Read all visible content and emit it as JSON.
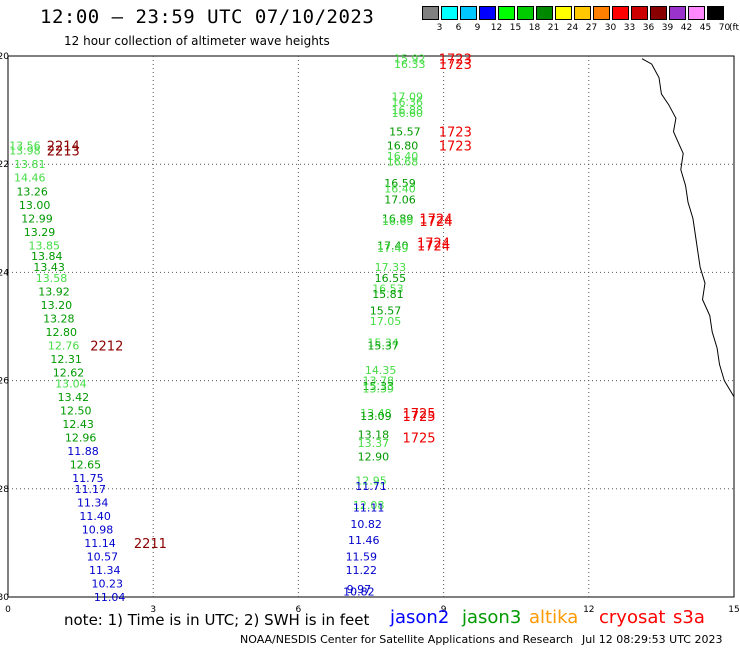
{
  "header": {
    "title": "12:00 – 23:59 UTC 07/10/2023",
    "subtitle": "12 hour collection of altimeter wave heights"
  },
  "color_scale": {
    "colors": [
      "#808080",
      "#00ffff",
      "#00c8ff",
      "#0000ff",
      "#00ff00",
      "#00cc00",
      "#008800",
      "#ffff00",
      "#ffc800",
      "#ff8000",
      "#ff0000",
      "#cc0000",
      "#880000",
      "#9933cc",
      "#ff88ff",
      "#000000"
    ],
    "labels": [
      "3",
      "6",
      "9",
      "12",
      "15",
      "18",
      "21",
      "24",
      "27",
      "30",
      "33",
      "36",
      "39",
      "42",
      "45",
      "70"
    ],
    "unit": "(ft)"
  },
  "footer": {
    "note": "note:  1) Time is in UTC; 2) SWH is in feet",
    "satellites": [
      {
        "name": "jason2",
        "color": "#0000ff"
      },
      {
        "name": "jason3",
        "color": "#009900"
      },
      {
        "name": "altika",
        "color": "#ff9900"
      },
      {
        "name": "cryosat",
        "color": "#ff0000"
      },
      {
        "name": "s3a",
        "color": "#ff0000"
      }
    ],
    "credit": "NOAA/NESDIS Center for Satellite Applications and Research",
    "timestamp": "Jul 12 08:29:53 UTC 2023"
  },
  "chart_data": {
    "type": "scatter",
    "xlim": [
      0,
      15
    ],
    "ylim": [
      -30,
      -20
    ],
    "xticks": [
      "0",
      "3",
      "6",
      "9",
      "12",
      "15"
    ],
    "yticks": [
      "-20",
      "-22",
      "-24",
      "-26",
      "-28",
      "-30"
    ],
    "grid": true,
    "track_color_key": {
      "light_green": "#44dd44",
      "dark_green": "#009900",
      "blue": "#0000cc"
    },
    "coastline": [
      [
        13.1,
        -20.05
      ],
      [
        13.3,
        -20.15
      ],
      [
        13.45,
        -20.4
      ],
      [
        13.5,
        -20.7
      ],
      [
        13.65,
        -20.9
      ],
      [
        13.8,
        -21.15
      ],
      [
        13.75,
        -21.4
      ],
      [
        13.85,
        -21.6
      ],
      [
        13.95,
        -21.8
      ],
      [
        13.9,
        -22.1
      ],
      [
        14.0,
        -22.4
      ],
      [
        14.05,
        -22.7
      ],
      [
        14.15,
        -23.0
      ],
      [
        14.2,
        -23.3
      ],
      [
        14.25,
        -23.6
      ],
      [
        14.3,
        -23.9
      ],
      [
        14.4,
        -24.2
      ],
      [
        14.35,
        -24.5
      ],
      [
        14.5,
        -24.8
      ],
      [
        14.55,
        -25.1
      ],
      [
        14.65,
        -25.4
      ],
      [
        14.7,
        -25.7
      ],
      [
        14.8,
        -26.0
      ],
      [
        14.9,
        -26.15
      ],
      [
        15.0,
        -26.3
      ]
    ],
    "points": [
      {
        "x": 8.3,
        "y": -20.05,
        "label": "15.92",
        "color": "#44dd44"
      },
      {
        "x": 8.3,
        "y": -20.15,
        "label": "16.33",
        "color": "#44dd44"
      },
      {
        "x": 8.25,
        "y": -20.75,
        "label": "17.09",
        "color": "#44dd44"
      },
      {
        "x": 8.25,
        "y": -20.85,
        "label": "16.36",
        "color": "#44dd44"
      },
      {
        "x": 8.25,
        "y": -21.0,
        "label": "16.88",
        "color": "#44dd44"
      },
      {
        "x": 8.25,
        "y": -21.05,
        "label": "16.60",
        "color": "#44dd44"
      },
      {
        "x": 8.2,
        "y": -21.4,
        "label": "15.57",
        "color": "#009900"
      },
      {
        "x": 8.15,
        "y": -21.65,
        "label": "16.80",
        "color": "#009900"
      },
      {
        "x": 8.15,
        "y": -21.85,
        "label": "16.40",
        "color": "#44dd44"
      },
      {
        "x": 8.15,
        "y": -21.95,
        "label": "16.68",
        "color": "#44dd44"
      },
      {
        "x": 8.1,
        "y": -22.35,
        "label": "16.59",
        "color": "#009900"
      },
      {
        "x": 8.1,
        "y": -22.45,
        "label": "16.40",
        "color": "#44dd44"
      },
      {
        "x": 8.1,
        "y": -22.65,
        "label": "17.06",
        "color": "#009900"
      },
      {
        "x": 8.05,
        "y": -23.0,
        "label": "16.89",
        "color": "#009900"
      },
      {
        "x": 8.05,
        "y": -23.05,
        "label": "16.69",
        "color": "#44dd44"
      },
      {
        "x": 7.95,
        "y": -23.5,
        "label": "17.40",
        "color": "#009900"
      },
      {
        "x": 7.95,
        "y": -23.55,
        "label": "17.49",
        "color": "#44dd44"
      },
      {
        "x": 7.9,
        "y": -23.9,
        "label": "17.33",
        "color": "#44dd44"
      },
      {
        "x": 7.9,
        "y": -24.1,
        "label": "16.55",
        "color": "#009900"
      },
      {
        "x": 7.85,
        "y": -24.3,
        "label": "16.53",
        "color": "#44dd44"
      },
      {
        "x": 7.85,
        "y": -24.4,
        "label": "15.81",
        "color": "#009900"
      },
      {
        "x": 7.8,
        "y": -24.7,
        "label": "15.57",
        "color": "#009900"
      },
      {
        "x": 7.8,
        "y": -24.9,
        "label": "17.05",
        "color": "#44dd44"
      },
      {
        "x": 7.75,
        "y": -25.3,
        "label": "15.34",
        "color": "#44dd44"
      },
      {
        "x": 7.75,
        "y": -25.35,
        "label": "15.37",
        "color": "#009900"
      },
      {
        "x": 7.7,
        "y": -25.8,
        "label": "14.35",
        "color": "#44dd44"
      },
      {
        "x": 7.65,
        "y": -26.0,
        "label": "13.78",
        "color": "#44dd44"
      },
      {
        "x": 7.65,
        "y": -26.1,
        "label": "15.33",
        "color": "#009900"
      },
      {
        "x": 7.65,
        "y": -26.15,
        "label": "13.39",
        "color": "#44dd44"
      },
      {
        "x": 7.6,
        "y": -26.6,
        "label": "13.48",
        "color": "#44dd44"
      },
      {
        "x": 7.6,
        "y": -26.65,
        "label": "13.09",
        "color": "#009900"
      },
      {
        "x": 7.55,
        "y": -27.0,
        "label": "13.18",
        "color": "#009900"
      },
      {
        "x": 7.55,
        "y": -27.15,
        "label": "13.37",
        "color": "#44dd44"
      },
      {
        "x": 7.55,
        "y": -27.4,
        "label": "12.90",
        "color": "#009900"
      },
      {
        "x": 7.5,
        "y": -27.85,
        "label": "12.95",
        "color": "#44dd44"
      },
      {
        "x": 7.5,
        "y": -27.95,
        "label": "11.71",
        "color": "#0000cc"
      },
      {
        "x": 7.45,
        "y": -28.3,
        "label": "12.08",
        "color": "#44dd44"
      },
      {
        "x": 7.45,
        "y": -28.35,
        "label": "11.11",
        "color": "#0000cc"
      },
      {
        "x": 7.4,
        "y": -28.65,
        "label": "10.82",
        "color": "#0000cc"
      },
      {
        "x": 7.35,
        "y": -28.95,
        "label": "11.46",
        "color": "#0000cc"
      },
      {
        "x": 7.3,
        "y": -29.25,
        "label": "11.59",
        "color": "#0000cc"
      },
      {
        "x": 7.3,
        "y": -29.5,
        "label": "11.22",
        "color": "#0000cc"
      },
      {
        "x": 7.25,
        "y": -29.85,
        "label": "9.97",
        "color": "#0000cc"
      },
      {
        "x": 7.25,
        "y": -29.9,
        "label": "10.82",
        "color": "#0000cc"
      },
      {
        "x": 0.35,
        "y": -21.65,
        "label": "13.56",
        "color": "#44dd44"
      },
      {
        "x": 0.35,
        "y": -21.75,
        "label": "13.98",
        "color": "#44dd44"
      },
      {
        "x": 0.45,
        "y": -22.0,
        "label": "13.81",
        "color": "#44dd44"
      },
      {
        "x": 0.45,
        "y": -22.25,
        "label": "14.46",
        "color": "#44dd44"
      },
      {
        "x": 0.5,
        "y": -22.5,
        "label": "13.26",
        "color": "#009900"
      },
      {
        "x": 0.55,
        "y": -22.75,
        "label": "13.00",
        "color": "#009900"
      },
      {
        "x": 0.6,
        "y": -23.0,
        "label": "12.99",
        "color": "#009900"
      },
      {
        "x": 0.65,
        "y": -23.25,
        "label": "13.29",
        "color": "#009900"
      },
      {
        "x": 0.75,
        "y": -23.5,
        "label": "13.85",
        "color": "#44dd44"
      },
      {
        "x": 0.8,
        "y": -23.7,
        "label": "13.84",
        "color": "#009900"
      },
      {
        "x": 0.85,
        "y": -23.9,
        "label": "13.43",
        "color": "#009900"
      },
      {
        "x": 0.9,
        "y": -24.1,
        "label": "13.58",
        "color": "#44dd44"
      },
      {
        "x": 0.95,
        "y": -24.35,
        "label": "13.92",
        "color": "#009900"
      },
      {
        "x": 1.0,
        "y": -24.6,
        "label": "13.20",
        "color": "#009900"
      },
      {
        "x": 1.05,
        "y": -24.85,
        "label": "13.28",
        "color": "#009900"
      },
      {
        "x": 1.1,
        "y": -25.1,
        "label": "12.80",
        "color": "#009900"
      },
      {
        "x": 1.15,
        "y": -25.35,
        "label": "12.76",
        "color": "#44dd44"
      },
      {
        "x": 1.2,
        "y": -25.6,
        "label": "12.31",
        "color": "#009900"
      },
      {
        "x": 1.25,
        "y": -25.85,
        "label": "12.62",
        "color": "#009900"
      },
      {
        "x": 1.3,
        "y": -26.05,
        "label": "13.04",
        "color": "#44dd44"
      },
      {
        "x": 1.35,
        "y": -26.3,
        "label": "13.42",
        "color": "#009900"
      },
      {
        "x": 1.4,
        "y": -26.55,
        "label": "12.50",
        "color": "#009900"
      },
      {
        "x": 1.45,
        "y": -26.8,
        "label": "12.43",
        "color": "#009900"
      },
      {
        "x": 1.5,
        "y": -27.05,
        "label": "12.96",
        "color": "#009900"
      },
      {
        "x": 1.55,
        "y": -27.3,
        "label": "11.88",
        "color": "#0000cc"
      },
      {
        "x": 1.6,
        "y": -27.55,
        "label": "12.65",
        "color": "#009900"
      },
      {
        "x": 1.65,
        "y": -27.8,
        "label": "11.75",
        "color": "#0000cc"
      },
      {
        "x": 1.7,
        "y": -28.0,
        "label": "11.17",
        "color": "#0000cc"
      },
      {
        "x": 1.75,
        "y": -28.25,
        "label": "11.34",
        "color": "#0000cc"
      },
      {
        "x": 1.8,
        "y": -28.5,
        "label": "11.40",
        "color": "#0000cc"
      },
      {
        "x": 1.85,
        "y": -28.75,
        "label": "10.98",
        "color": "#0000cc"
      },
      {
        "x": 1.9,
        "y": -29.0,
        "label": "11.14",
        "color": "#0000cc"
      },
      {
        "x": 1.95,
        "y": -29.25,
        "label": "10.57",
        "color": "#0000cc"
      },
      {
        "x": 2.0,
        "y": -29.5,
        "label": "11.34",
        "color": "#0000cc"
      },
      {
        "x": 2.05,
        "y": -29.75,
        "label": "10.23",
        "color": "#0000cc"
      },
      {
        "x": 2.1,
        "y": -30.0,
        "label": "11.04",
        "color": "#0000cc"
      }
    ],
    "time_labels": [
      {
        "x": 8.9,
        "y": -20.05,
        "label": "1723",
        "color": "#ee0000"
      },
      {
        "x": 8.9,
        "y": -20.15,
        "label": "1723",
        "color": "#ee0000"
      },
      {
        "x": 8.9,
        "y": -21.4,
        "label": "1723",
        "color": "#ee0000"
      },
      {
        "x": 8.9,
        "y": -21.65,
        "label": "1723",
        "color": "#ee0000"
      },
      {
        "x": 8.5,
        "y": -23.0,
        "label": "1724",
        "color": "#ee0000"
      },
      {
        "x": 8.5,
        "y": -23.05,
        "label": "1724",
        "color": "#ee0000"
      },
      {
        "x": 8.45,
        "y": -23.45,
        "label": "1724",
        "color": "#ee0000"
      },
      {
        "x": 8.45,
        "y": -23.5,
        "label": "1724",
        "color": "#ee0000"
      },
      {
        "x": 8.15,
        "y": -26.6,
        "label": "1725",
        "color": "#ee0000"
      },
      {
        "x": 8.15,
        "y": -26.65,
        "label": "1725",
        "color": "#ee0000"
      },
      {
        "x": 8.15,
        "y": -27.05,
        "label": "1725",
        "color": "#ee0000"
      },
      {
        "x": 0.8,
        "y": -21.65,
        "label": "2214",
        "color": "#8b0000"
      },
      {
        "x": 0.8,
        "y": -21.75,
        "label": "2213",
        "color": "#8b0000"
      },
      {
        "x": 1.7,
        "y": -25.35,
        "label": "2212",
        "color": "#8b0000"
      },
      {
        "x": 2.6,
        "y": -29.0,
        "label": "2211",
        "color": "#8b0000"
      }
    ]
  }
}
